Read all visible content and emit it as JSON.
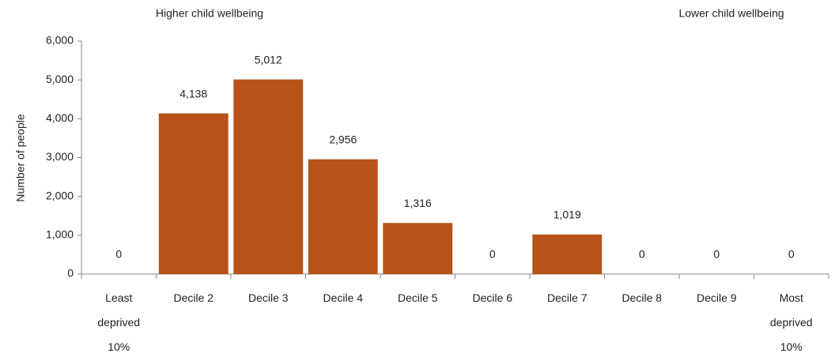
{
  "chart_data": {
    "type": "bar",
    "annotations": [
      "Higher child wellbeing",
      "Lower child wellbeing"
    ],
    "y_label": "Number of people",
    "categories": [
      "Least deprived 10%",
      "Decile 2",
      "Decile 3",
      "Decile 4",
      "Decile 5",
      "Decile 6",
      "Decile 7",
      "Decile 8",
      "Decile 9",
      "Most deprived 10%"
    ],
    "values": [
      0,
      4138,
      5012,
      2956,
      1316,
      0,
      1019,
      0,
      0,
      0
    ],
    "value_labels": [
      "0",
      "4,138",
      "5,012",
      "2,956",
      "1,316",
      "0",
      "1,019",
      "0",
      "0",
      "0"
    ],
    "color": "#b8521a",
    "ylim": [
      0,
      6000
    ],
    "yticks": [
      0,
      {
        "value": 1000,
        "label": "1,000"
      },
      {
        "value": 2000,
        "label": "2,000"
      },
      {
        "value": 3000,
        "label": "3,000"
      },
      {
        "value": 4000,
        "label": "4,000"
      },
      {
        "value": 5000,
        "label": "5,000"
      },
      {
        "value": 6000,
        "label": "6,000"
      }
    ],
    "grid": false
  }
}
